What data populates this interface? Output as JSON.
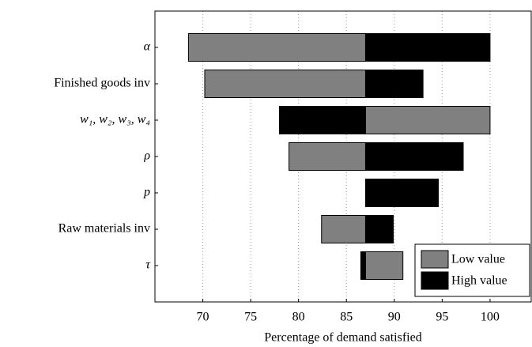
{
  "chart_data": {
    "type": "tornado",
    "x_label": "Percentage of demand satisfied",
    "categories": [
      "α",
      "Finished goods inv",
      "w₁, w₂, w₃, w₄",
      "ρ",
      "p",
      "Raw materials inv",
      "τ"
    ],
    "base": 87,
    "series": [
      {
        "name": "Low value",
        "color": "#808080",
        "values": [
          68.5,
          70.2,
          100,
          79,
          null,
          82.4,
          90.9
        ]
      },
      {
        "name": "High value",
        "color": "#000000",
        "values": [
          100,
          93,
          78,
          97.2,
          94.6,
          89.9,
          86.5
        ]
      }
    ],
    "xlim": [
      65,
      104.3
    ],
    "xticks": [
      70,
      75,
      80,
      85,
      90,
      95,
      100
    ],
    "grid": true,
    "legend": "lower right"
  }
}
